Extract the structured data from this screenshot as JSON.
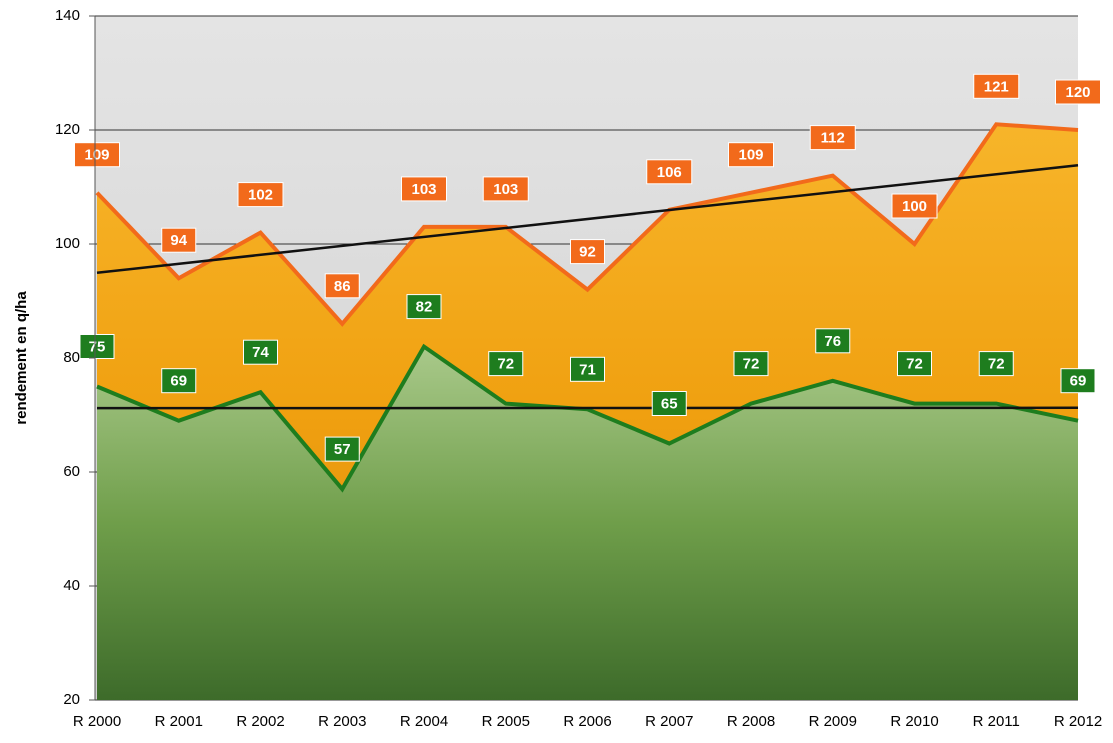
{
  "chart_data": {
    "type": "area",
    "y_label": "rendement en q/ha",
    "categories": [
      "R 2000",
      "R 2001",
      "R 2002",
      "R 2003",
      "R 2004",
      "R 2005",
      "R 2006",
      "R 2007",
      "R 2008",
      "R 2009",
      "R 2010",
      "R 2011",
      "R 2012"
    ],
    "series": [
      {
        "color": "#f26a1b",
        "values": [
          109,
          94,
          102,
          86,
          103,
          103,
          92,
          106,
          109,
          112,
          100,
          121,
          120
        ]
      },
      {
        "color": "#1e7d1e",
        "values": [
          75,
          69,
          74,
          57,
          82,
          72,
          71,
          65,
          72,
          76,
          72,
          72,
          69
        ]
      }
    ],
    "ylim": [
      20,
      140
    ],
    "yticks": [
      20,
      40,
      60,
      80,
      100,
      120,
      140
    ],
    "grid": true,
    "trendline": true
  }
}
